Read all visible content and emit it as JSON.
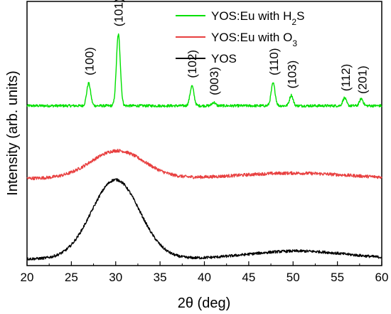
{
  "chart_data": {
    "type": "line",
    "xlabel": "2θ (deg)",
    "ylabel": "Intensity (arb. units)",
    "xlim": [
      20,
      60
    ],
    "ylim": [
      0,
      10
    ],
    "x_ticks": [
      "20",
      "25",
      "30",
      "35",
      "40",
      "45",
      "50",
      "55",
      "60"
    ],
    "y_ticks_shown": false,
    "grid": false,
    "legend_position": "top-right",
    "series": [
      {
        "name_parts": [
          "YOS:Eu with H",
          "2",
          "S"
        ],
        "color": "#00e000",
        "baseline": 6.05,
        "peaks": [
          {
            "x": 26.95,
            "height": 0.85,
            "width": 0.22
          },
          {
            "x": 30.3,
            "height": 2.7,
            "width": 0.22
          },
          {
            "x": 38.6,
            "height": 0.75,
            "width": 0.22
          },
          {
            "x": 41.05,
            "height": 0.13,
            "width": 0.2
          },
          {
            "x": 47.75,
            "height": 0.85,
            "width": 0.22
          },
          {
            "x": 49.8,
            "height": 0.4,
            "width": 0.2
          },
          {
            "x": 55.8,
            "height": 0.3,
            "width": 0.2
          },
          {
            "x": 57.7,
            "height": 0.27,
            "width": 0.2
          }
        ],
        "noise": 0.05
      },
      {
        "name_parts": [
          "YOS:Eu with O",
          "3",
          ""
        ],
        "color": "#e84040",
        "baseline": 3.3,
        "peaks": [
          {
            "x": 30.2,
            "height": 1.05,
            "width": 3.0
          },
          {
            "x": 50.0,
            "height": 0.2,
            "width": 6.0
          }
        ],
        "noise": 0.06
      },
      {
        "name_parts": [
          "YOS",
          "",
          ""
        ],
        "color": "#000000",
        "baseline": 0.25,
        "peaks": [
          {
            "x": 30.0,
            "height": 3.0,
            "width": 2.7
          },
          {
            "x": 50.5,
            "height": 0.3,
            "width": 5.5
          }
        ],
        "noise": 0.05
      }
    ],
    "annotations": [
      {
        "text": "(100)",
        "x": 27.0,
        "y": 7.2
      },
      {
        "text": "(101)",
        "x": 30.3,
        "y": 9.05
      },
      {
        "text": "(102)",
        "x": 38.6,
        "y": 7.1
      },
      {
        "text": "(003)",
        "x": 41.1,
        "y": 6.45
      },
      {
        "text": "(110)",
        "x": 47.8,
        "y": 7.2
      },
      {
        "text": "(103)",
        "x": 49.85,
        "y": 6.7
      },
      {
        "text": "(112)",
        "x": 55.9,
        "y": 6.6
      },
      {
        "text": "(201)",
        "x": 57.8,
        "y": 6.5
      }
    ]
  }
}
